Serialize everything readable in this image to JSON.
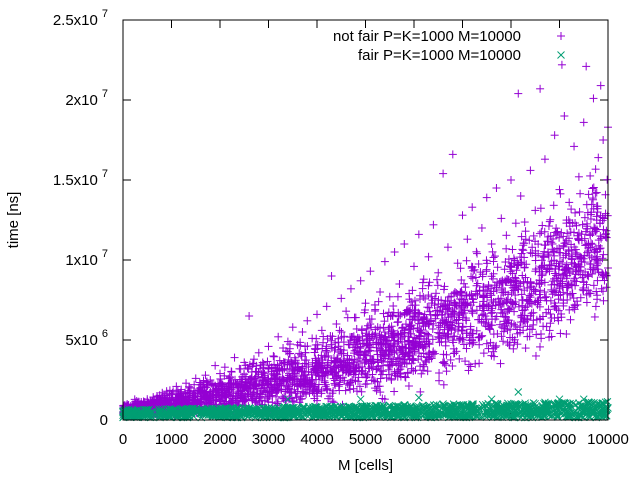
{
  "chart_data": {
    "type": "scatter",
    "title": "",
    "xlabel": "M [cells]",
    "ylabel": "time [ns]",
    "xlim": [
      0,
      10000
    ],
    "ylim": [
      0,
      25000000
    ],
    "grid": false,
    "legend_position": "top-right",
    "x_ticks": [
      {
        "value": 0,
        "label": "0"
      },
      {
        "value": 1000,
        "label": "1000"
      },
      {
        "value": 2000,
        "label": "2000"
      },
      {
        "value": 3000,
        "label": "3000"
      },
      {
        "value": 4000,
        "label": "4000"
      },
      {
        "value": 5000,
        "label": "5000"
      },
      {
        "value": 6000,
        "label": "6000"
      },
      {
        "value": 7000,
        "label": "7000"
      },
      {
        "value": 8000,
        "label": "8000"
      },
      {
        "value": 9000,
        "label": "9000"
      },
      {
        "value": 10000,
        "label": "10000"
      }
    ],
    "y_ticks": [
      {
        "value": 0,
        "base": "0",
        "exp": ""
      },
      {
        "value": 5000000,
        "base": "5x10",
        "exp": "6"
      },
      {
        "value": 10000000,
        "base": "1x10",
        "exp": "7"
      },
      {
        "value": 15000000,
        "base": "1.5x10",
        "exp": "7"
      },
      {
        "value": 20000000,
        "base": "2x10",
        "exp": "7"
      },
      {
        "value": 25000000,
        "base": "2.5x10",
        "exp": "7"
      }
    ],
    "series": [
      {
        "name": "not fair P=K=1000 M=10000",
        "marker": "plus",
        "color": "#9400d3",
        "points": [
          [
            50,
            500000
          ],
          [
            100,
            900000
          ],
          [
            200,
            700000
          ],
          [
            300,
            1100000
          ],
          [
            400,
            900000
          ],
          [
            500,
            1300000
          ],
          [
            600,
            1200000
          ],
          [
            700,
            1500000
          ],
          [
            800,
            1400000
          ],
          [
            900,
            1800000
          ],
          [
            1000,
            1600000
          ],
          [
            1100,
            2100000
          ],
          [
            1200,
            1900000
          ],
          [
            1300,
            2300000
          ],
          [
            1400,
            2000000
          ],
          [
            1500,
            2600000
          ],
          [
            1600,
            2200000
          ],
          [
            1700,
            2800000
          ],
          [
            1800,
            2500000
          ],
          [
            1900,
            3400000
          ],
          [
            2000,
            2900000
          ],
          [
            2100,
            3300000
          ],
          [
            2200,
            2700000
          ],
          [
            2300,
            3900000
          ],
          [
            2400,
            3200000
          ],
          [
            2500,
            3600000
          ],
          [
            2600,
            6500000
          ],
          [
            2700,
            3800000
          ],
          [
            2800,
            4200000
          ],
          [
            2900,
            3500000
          ],
          [
            3000,
            4600000
          ],
          [
            3100,
            4000000
          ],
          [
            3200,
            5200000
          ],
          [
            3300,
            4500000
          ],
          [
            3400,
            4900000
          ],
          [
            3500,
            5800000
          ],
          [
            3600,
            4700000
          ],
          [
            3700,
            5500000
          ],
          [
            3800,
            6200000
          ],
          [
            3900,
            5100000
          ],
          [
            4000,
            6600000
          ],
          [
            4100,
            5600000
          ],
          [
            4200,
            7100000
          ],
          [
            4300,
            9000000
          ],
          [
            4400,
            6000000
          ],
          [
            4500,
            7600000
          ],
          [
            4600,
            6800000
          ],
          [
            4700,
            8200000
          ],
          [
            4800,
            6400000
          ],
          [
            4900,
            8700000
          ],
          [
            5000,
            7300000
          ],
          [
            5100,
            9300000
          ],
          [
            5200,
            6900000
          ],
          [
            5300,
            8000000
          ],
          [
            5400,
            9900000
          ],
          [
            5500,
            7700000
          ],
          [
            5600,
            10500000
          ],
          [
            5700,
            8500000
          ],
          [
            5800,
            11000000
          ],
          [
            5900,
            7900000
          ],
          [
            6000,
            9600000
          ],
          [
            6100,
            11600000
          ],
          [
            6200,
            8800000
          ],
          [
            6300,
            10200000
          ],
          [
            6400,
            12200000
          ],
          [
            6500,
            9200000
          ],
          [
            6600,
            15400000
          ],
          [
            6700,
            10800000
          ],
          [
            6800,
            16600000
          ],
          [
            6900,
            9800000
          ],
          [
            7000,
            12800000
          ],
          [
            7100,
            11300000
          ],
          [
            7200,
            13300000
          ],
          [
            7300,
            10400000
          ],
          [
            7400,
            12000000
          ],
          [
            7500,
            13900000
          ],
          [
            7600,
            11000000
          ],
          [
            7700,
            14500000
          ],
          [
            7800,
            12600000
          ],
          [
            7900,
            10700000
          ],
          [
            8000,
            15000000
          ],
          [
            8100,
            12300000
          ],
          [
            8150,
            20400000
          ],
          [
            8200,
            14000000
          ],
          [
            8300,
            11800000
          ],
          [
            8400,
            15600000
          ],
          [
            8500,
            13100000
          ],
          [
            8600,
            20700000
          ],
          [
            8700,
            16300000
          ],
          [
            8800,
            12400000
          ],
          [
            8900,
            17800000
          ],
          [
            9000,
            14400000
          ],
          [
            9050,
            22200000
          ],
          [
            9100,
            19000000
          ],
          [
            9200,
            13600000
          ],
          [
            9300,
            17100000
          ],
          [
            9400,
            15200000
          ],
          [
            9500,
            18600000
          ],
          [
            9550,
            22100000
          ],
          [
            9600,
            14100000
          ],
          [
            9700,
            20100000
          ],
          [
            9750,
            11800000
          ],
          [
            9800,
            16400000
          ],
          [
            9850,
            20900000
          ],
          [
            9900,
            17500000
          ],
          [
            9950,
            12900000
          ],
          [
            10000,
            18300000
          ],
          [
            3500,
            2700000
          ],
          [
            4500,
            3300000
          ],
          [
            5500,
            4100000
          ],
          [
            6500,
            5200000
          ],
          [
            7500,
            6300000
          ],
          [
            8500,
            7400000
          ],
          [
            9500,
            8600000
          ],
          [
            2500,
            2000000
          ],
          [
            1500,
            1200000
          ],
          [
            3000,
            2500000
          ],
          [
            6000,
            4900000
          ],
          [
            7000,
            5800000
          ],
          [
            8000,
            7000000
          ],
          [
            9000,
            8200000
          ],
          [
            10000,
            9500000
          ],
          [
            5000,
            3700000
          ],
          [
            4000,
            3000000
          ]
        ]
      },
      {
        "name": "fair P=K=1000 M=10000",
        "marker": "x",
        "color": "#009e73",
        "points": [
          [
            0,
            300000
          ],
          [
            200,
            500000
          ],
          [
            400,
            250000
          ],
          [
            600,
            550000
          ],
          [
            800,
            350000
          ],
          [
            1000,
            600000
          ],
          [
            1200,
            300000
          ],
          [
            1400,
            650000
          ],
          [
            1600,
            400000
          ],
          [
            1800,
            550000
          ],
          [
            2000,
            350000
          ],
          [
            2200,
            700000
          ],
          [
            2400,
            450000
          ],
          [
            2600,
            600000
          ],
          [
            2800,
            380000
          ],
          [
            3000,
            750000
          ],
          [
            3200,
            500000
          ],
          [
            3400,
            1300000
          ],
          [
            3600,
            650000
          ],
          [
            3800,
            450000
          ],
          [
            4000,
            800000
          ],
          [
            4200,
            550000
          ],
          [
            4400,
            700000
          ],
          [
            4600,
            480000
          ],
          [
            4800,
            850000
          ],
          [
            4900,
            1300000
          ],
          [
            5000,
            600000
          ],
          [
            5200,
            900000
          ],
          [
            5400,
            520000
          ],
          [
            5600,
            750000
          ],
          [
            5800,
            950000
          ],
          [
            6000,
            580000
          ],
          [
            6100,
            1400000
          ],
          [
            6200,
            800000
          ],
          [
            6400,
            650000
          ],
          [
            6600,
            1000000
          ],
          [
            6800,
            700000
          ],
          [
            7000,
            550000
          ],
          [
            7200,
            950000
          ],
          [
            7400,
            750000
          ],
          [
            7600,
            1300000
          ],
          [
            7800,
            600000
          ],
          [
            8000,
            1000000
          ],
          [
            8150,
            1750000
          ],
          [
            8300,
            800000
          ],
          [
            8500,
            650000
          ],
          [
            8700,
            1100000
          ],
          [
            8900,
            900000
          ],
          [
            9000,
            1300000
          ],
          [
            9200,
            700000
          ],
          [
            9400,
            1050000
          ],
          [
            9500,
            1300000
          ],
          [
            9600,
            800000
          ],
          [
            9800,
            1000000
          ],
          [
            10000,
            750000
          ]
        ]
      }
    ]
  }
}
